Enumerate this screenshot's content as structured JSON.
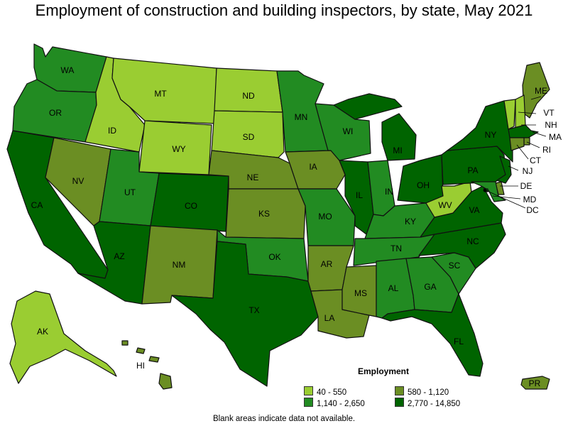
{
  "title": "Employment of construction and building inspectors, by state, May 2021",
  "legend": {
    "title": "Employment",
    "items": [
      {
        "range": "40 - 550",
        "color": "#9ACD32"
      },
      {
        "range": "580 - 1,120",
        "color": "#6B8E23"
      },
      {
        "range": "1,140 - 2,650",
        "color": "#228B22"
      },
      {
        "range": "2,770 - 14,850",
        "color": "#006400"
      }
    ]
  },
  "footnote": "Blank areas indicate data not available.",
  "states": [
    {
      "abbr": "WA",
      "bin": 2
    },
    {
      "abbr": "OR",
      "bin": 2
    },
    {
      "abbr": "CA",
      "bin": 3
    },
    {
      "abbr": "ID",
      "bin": 0
    },
    {
      "abbr": "NV",
      "bin": 1
    },
    {
      "abbr": "MT",
      "bin": 0
    },
    {
      "abbr": "WY",
      "bin": 0
    },
    {
      "abbr": "UT",
      "bin": 2
    },
    {
      "abbr": "AZ",
      "bin": 3
    },
    {
      "abbr": "CO",
      "bin": 3
    },
    {
      "abbr": "NM",
      "bin": 1
    },
    {
      "abbr": "ND",
      "bin": 0
    },
    {
      "abbr": "SD",
      "bin": 0
    },
    {
      "abbr": "NE",
      "bin": 1
    },
    {
      "abbr": "KS",
      "bin": 1
    },
    {
      "abbr": "OK",
      "bin": 2
    },
    {
      "abbr": "TX",
      "bin": 3
    },
    {
      "abbr": "MN",
      "bin": 2
    },
    {
      "abbr": "IA",
      "bin": 1
    },
    {
      "abbr": "MO",
      "bin": 2
    },
    {
      "abbr": "AR",
      "bin": 1
    },
    {
      "abbr": "LA",
      "bin": 1
    },
    {
      "abbr": "WI",
      "bin": 2
    },
    {
      "abbr": "IL",
      "bin": 3
    },
    {
      "abbr": "MS",
      "bin": 1
    },
    {
      "abbr": "MI",
      "bin": 3
    },
    {
      "abbr": "IN",
      "bin": 2
    },
    {
      "abbr": "KY",
      "bin": 2
    },
    {
      "abbr": "TN",
      "bin": 2
    },
    {
      "abbr": "AL",
      "bin": 2
    },
    {
      "abbr": "OH",
      "bin": 3
    },
    {
      "abbr": "GA",
      "bin": 2
    },
    {
      "abbr": "FL",
      "bin": 3
    },
    {
      "abbr": "SC",
      "bin": 2
    },
    {
      "abbr": "NC",
      "bin": 3
    },
    {
      "abbr": "VA",
      "bin": 3
    },
    {
      "abbr": "WV",
      "bin": 0
    },
    {
      "abbr": "PA",
      "bin": 3
    },
    {
      "abbr": "NY",
      "bin": 3
    },
    {
      "abbr": "ME",
      "bin": 1
    },
    {
      "abbr": "VT",
      "bin": 0
    },
    {
      "abbr": "NH",
      "bin": 0
    },
    {
      "abbr": "MA",
      "bin": 3
    },
    {
      "abbr": "RI",
      "bin": 1
    },
    {
      "abbr": "CT",
      "bin": 1
    },
    {
      "abbr": "NJ",
      "bin": 3
    },
    {
      "abbr": "DE",
      "bin": 1
    },
    {
      "abbr": "MD",
      "bin": 2
    },
    {
      "abbr": "DC",
      "bin": 3
    },
    {
      "abbr": "AK",
      "bin": 0
    },
    {
      "abbr": "HI",
      "bin": 1
    },
    {
      "abbr": "PR",
      "bin": 1
    }
  ]
}
